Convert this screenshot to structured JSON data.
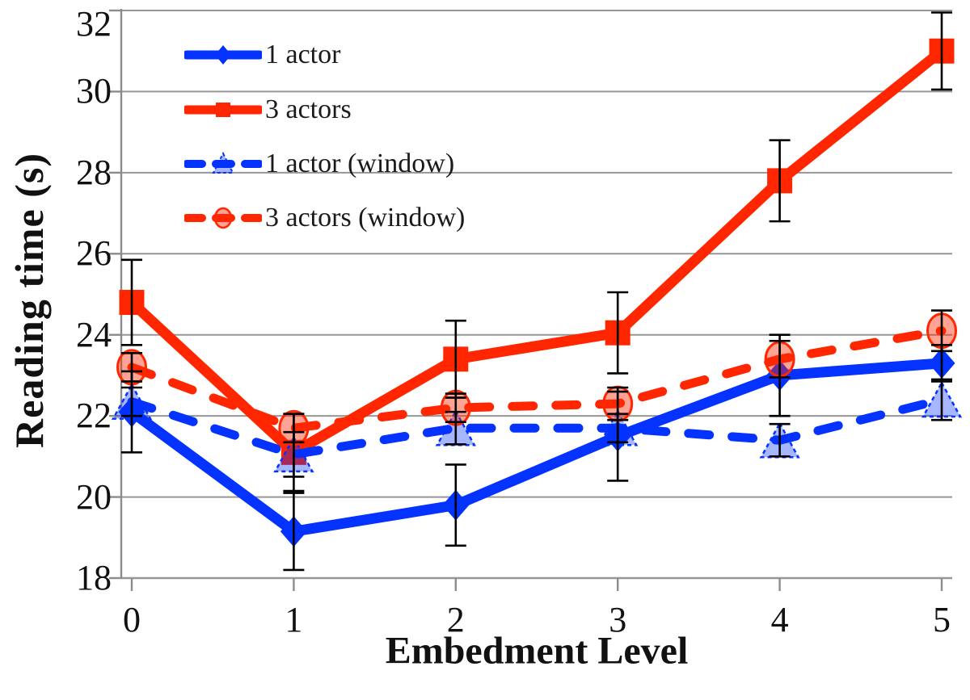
{
  "chart_data": {
    "type": "line",
    "title": "",
    "xlabel": "Embedment Level",
    "ylabel": "Reading time (s)",
    "categories": [
      "0",
      "1",
      "2",
      "3",
      "4",
      "5"
    ],
    "yticks": [
      18,
      20,
      22,
      24,
      26,
      28,
      30,
      32
    ],
    "ylim": [
      18,
      32
    ],
    "grid": "horizontal",
    "legend_position": "top-left",
    "series": [
      {
        "name": "1 actor",
        "color": "#0432FF",
        "line": "solid",
        "marker": "diamond",
        "values": [
          22.1,
          19.15,
          19.8,
          21.5,
          23.0,
          23.3
        ],
        "errors": [
          1.0,
          0.95,
          1.0,
          1.1,
          1.0,
          0.45
        ]
      },
      {
        "name": "3 actors",
        "color": "#FF2600",
        "line": "solid",
        "marker": "square",
        "values": [
          24.8,
          21.1,
          23.4,
          24.05,
          27.8,
          31.0
        ],
        "errors": [
          1.05,
          0.95,
          0.95,
          1.0,
          1.0,
          0.95
        ]
      },
      {
        "name": "1 actor (window)",
        "color": "#0432FF",
        "line": "dashed",
        "marker": "triangle",
        "values": [
          22.35,
          21.05,
          21.7,
          21.7,
          21.4,
          22.4
        ],
        "errors": [
          0.35,
          0.55,
          0.4,
          0.35,
          0.4,
          0.5
        ]
      },
      {
        "name": "3 actors (window)",
        "color": "#FF2600",
        "line": "dashed",
        "marker": "circle",
        "values": [
          23.2,
          21.7,
          22.2,
          22.3,
          23.4,
          24.1
        ],
        "errors": [
          0.35,
          0.35,
          0.35,
          0.4,
          0.45,
          0.5
        ]
      }
    ],
    "colors": {
      "grid": "#969696",
      "axis": "#8C8C8C",
      "error_bar": "#000000",
      "text": "#111111"
    }
  }
}
